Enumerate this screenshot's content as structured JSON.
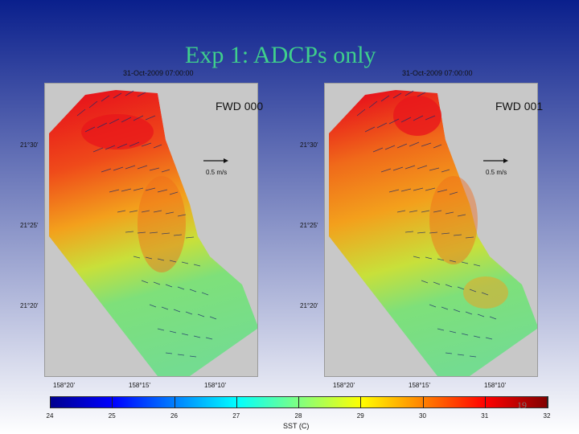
{
  "slide": {
    "title": "Exp 1: ADCPs only",
    "page_number": "19",
    "background_colors": {
      "top": "#0a1f8c",
      "bottom": "#ffffff"
    }
  },
  "panels": [
    {
      "timestamp": "31-Oct-2009 07:00:00",
      "label": "FWD 000",
      "scale_label": "0.5 m/s",
      "lat_labels": [
        "21°30'",
        "21°25'",
        "21°20'"
      ],
      "lon_labels": [
        "158°20'",
        "158°15'",
        "158°10'"
      ]
    },
    {
      "timestamp": "31-Oct-2009 07:00:00",
      "label": "FWD 001",
      "scale_label": "0.5 m/s",
      "lat_labels": [
        "21°30'",
        "21°25'",
        "21°20'"
      ],
      "lon_labels": [
        "158°20'",
        "158°15'",
        "158°10'"
      ]
    }
  ],
  "colorbar": {
    "label": "SST (C)",
    "ticks": [
      "24",
      "25",
      "26",
      "27",
      "28",
      "29",
      "30",
      "31",
      "32"
    ],
    "min": 24,
    "max": 32,
    "colors": [
      "#00008f",
      "#0000ff",
      "#0080ff",
      "#00ffff",
      "#80ff80",
      "#ffff00",
      "#ff8000",
      "#ff0000",
      "#800000"
    ]
  },
  "map_colors": {
    "land": "#c8c8c8",
    "warm": "#e8161b",
    "mid": "#f3a01c",
    "cool": "#7ee07a"
  }
}
